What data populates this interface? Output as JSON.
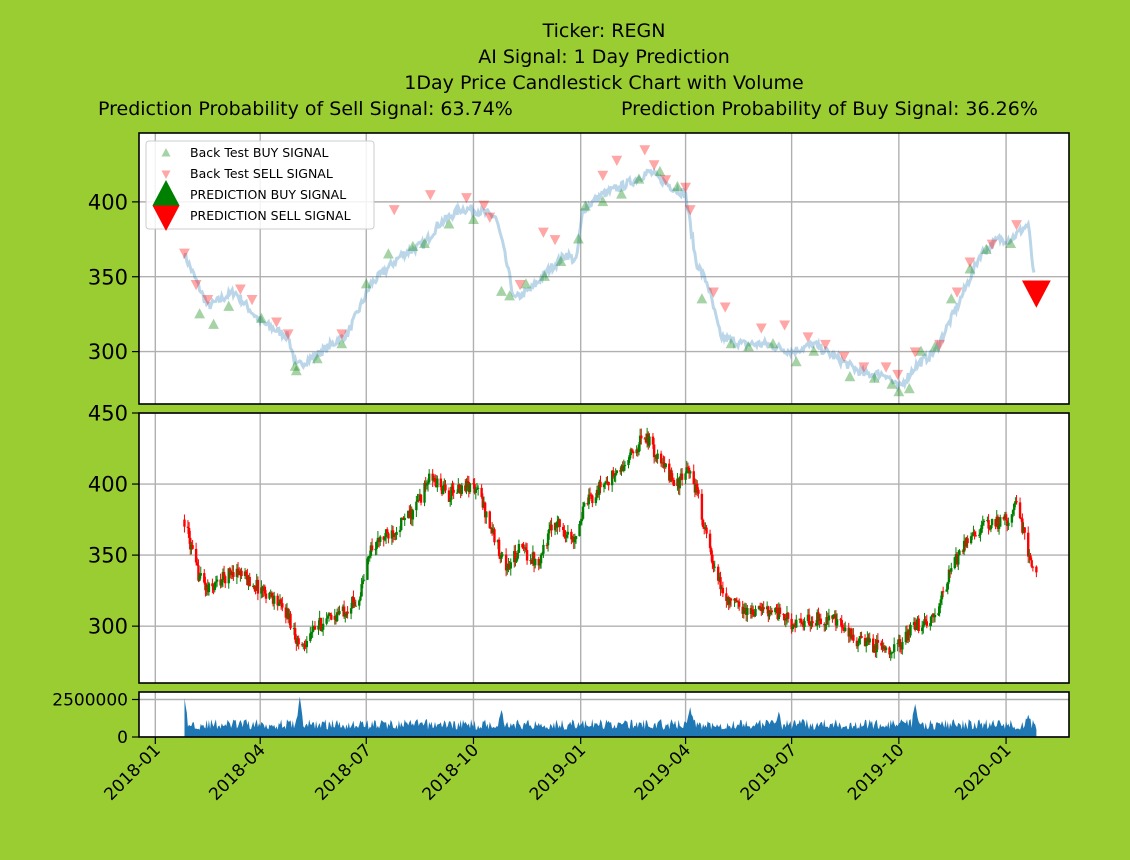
{
  "header": {
    "ticker": "Ticker: REGN",
    "signal": "AI Signal: 1 Day Prediction",
    "chart_desc": "1Day Price Candlestick Chart with Volume",
    "sell_prob": "Prediction Probability of Sell Signal: 63.74%",
    "buy_prob": "Prediction Probability of Buy Signal: 36.26%"
  },
  "colors": {
    "background": "#9acd32",
    "buy": "#008000",
    "sell": "#ff0000",
    "price_line": "#1f77b4",
    "volume": "#1f77b4",
    "grid": "#b0b0b0"
  },
  "legend": {
    "items": [
      {
        "label": "Back Test BUY SIGNAL",
        "symbol": "up",
        "color": "#008000",
        "alpha": 0.35
      },
      {
        "label": "Back Test SELL SIGNAL",
        "symbol": "down",
        "color": "#ff0000",
        "alpha": 0.35
      },
      {
        "label": "PREDICTION BUY SIGNAL",
        "symbol": "up",
        "color": "#008000",
        "alpha": 1
      },
      {
        "label": "PREDICTION SELL SIGNAL",
        "symbol": "down",
        "color": "#ff0000",
        "alpha": 1
      }
    ]
  },
  "chart_data": [
    {
      "type": "line",
      "name": "signals",
      "x_dates": [
        "2018-01-26",
        "2018-02-15",
        "2018-03-10",
        "2018-04-01",
        "2018-04-25",
        "2018-05-02",
        "2018-05-20",
        "2018-06-15",
        "2018-07-05",
        "2018-08-01",
        "2018-08-20",
        "2018-09-01",
        "2018-09-20",
        "2018-10-01",
        "2018-10-20",
        "2018-10-25",
        "2018-11-05",
        "2018-11-20",
        "2018-12-05",
        "2018-12-20",
        "2018-12-28",
        "2019-01-03",
        "2019-01-20",
        "2019-02-10",
        "2019-03-01",
        "2019-03-20",
        "2019-04-01",
        "2019-04-10",
        "2019-04-20",
        "2019-05-01",
        "2019-05-20",
        "2019-06-10",
        "2019-07-01",
        "2019-07-20",
        "2019-08-10",
        "2019-09-01",
        "2019-09-20",
        "2019-10-01",
        "2019-10-15",
        "2019-11-01",
        "2019-11-20",
        "2019-12-10",
        "2019-12-25",
        "2020-01-05",
        "2020-01-20",
        "2020-01-25"
      ],
      "values": [
        365,
        330,
        340,
        320,
        310,
        290,
        298,
        312,
        345,
        365,
        372,
        385,
        395,
        395,
        390,
        375,
        335,
        342,
        355,
        365,
        360,
        395,
        405,
        412,
        420,
        410,
        405,
        360,
        345,
        310,
        305,
        305,
        300,
        305,
        295,
        285,
        285,
        275,
        290,
        300,
        330,
        365,
        375,
        375,
        385,
        350
      ],
      "buy_dates": [
        "2018-02-08",
        "2018-02-20",
        "2018-03-05",
        "2018-04-02",
        "2018-05-01",
        "2018-05-02",
        "2018-05-20",
        "2018-06-10",
        "2018-07-01",
        "2018-07-20",
        "2018-08-10",
        "2018-08-20",
        "2018-09-10",
        "2018-10-01",
        "2018-10-25",
        "2018-11-01",
        "2018-11-15",
        "2018-12-01",
        "2018-12-15",
        "2018-12-30",
        "2019-01-05",
        "2019-01-20",
        "2019-02-05",
        "2019-02-20",
        "2019-03-10",
        "2019-03-25",
        "2019-04-15",
        "2019-05-10",
        "2019-05-25",
        "2019-06-15",
        "2019-07-05",
        "2019-07-20",
        "2019-08-20",
        "2019-09-10",
        "2019-09-25",
        "2019-10-01",
        "2019-10-10",
        "2019-10-20",
        "2019-11-01",
        "2019-11-15",
        "2019-12-01",
        "2019-12-15",
        "2020-01-05"
      ],
      "buy_values": [
        325,
        318,
        330,
        322,
        290,
        287,
        295,
        305,
        345,
        365,
        370,
        372,
        385,
        388,
        340,
        337,
        345,
        350,
        360,
        375,
        397,
        400,
        405,
        415,
        420,
        410,
        335,
        305,
        303,
        305,
        293,
        300,
        283,
        282,
        278,
        273,
        275,
        300,
        303,
        335,
        355,
        368,
        372
      ],
      "sell_dates": [
        "2018-01-26",
        "2018-02-05",
        "2018-02-15",
        "2018-03-15",
        "2018-03-25",
        "2018-04-15",
        "2018-04-25",
        "2018-06-10",
        "2018-07-25",
        "2018-08-25",
        "2018-09-25",
        "2018-10-10",
        "2018-10-15",
        "2018-11-10",
        "2018-11-30",
        "2018-12-10",
        "2019-01-20",
        "2019-02-01",
        "2019-02-25",
        "2019-03-05",
        "2019-03-15",
        "2019-04-01",
        "2019-04-05",
        "2019-04-25",
        "2019-05-05",
        "2019-06-05",
        "2019-06-25",
        "2019-07-15",
        "2019-07-30",
        "2019-08-15",
        "2019-09-01",
        "2019-09-20",
        "2019-09-30",
        "2019-10-15",
        "2019-11-05",
        "2019-11-20",
        "2019-12-01",
        "2019-12-20",
        "2020-01-10"
      ],
      "sell_values": [
        366,
        345,
        335,
        342,
        335,
        320,
        312,
        312,
        395,
        405,
        403,
        398,
        390,
        345,
        380,
        375,
        418,
        428,
        435,
        425,
        415,
        410,
        395,
        340,
        330,
        316,
        318,
        310,
        305,
        297,
        290,
        290,
        285,
        300,
        305,
        340,
        360,
        372,
        385
      ],
      "prediction": {
        "type": "sell",
        "date": "2020-01-27",
        "value": 340
      },
      "ylim": [
        265,
        446
      ],
      "yticks": [
        300,
        350,
        400
      ]
    },
    {
      "type": "candlestick",
      "name": "price",
      "anchor_dates": [
        "2018-01-26",
        "2018-02-05",
        "2018-02-15",
        "2018-03-10",
        "2018-03-25",
        "2018-04-10",
        "2018-04-25",
        "2018-05-05",
        "2018-05-20",
        "2018-06-10",
        "2018-06-25",
        "2018-07-05",
        "2018-07-25",
        "2018-08-10",
        "2018-08-25",
        "2018-09-10",
        "2018-09-25",
        "2018-10-05",
        "2018-10-20",
        "2018-10-30",
        "2018-11-10",
        "2018-11-25",
        "2018-12-10",
        "2018-12-25",
        "2019-01-05",
        "2019-01-20",
        "2019-02-05",
        "2019-02-25",
        "2019-03-10",
        "2019-03-25",
        "2019-04-05",
        "2019-04-12",
        "2019-04-25",
        "2019-05-05",
        "2019-05-25",
        "2019-06-15",
        "2019-07-05",
        "2019-07-20",
        "2019-08-05",
        "2019-08-25",
        "2019-09-15",
        "2019-09-30",
        "2019-10-15",
        "2019-11-01",
        "2019-11-15",
        "2019-12-01",
        "2019-12-20",
        "2020-01-03",
        "2020-01-10",
        "2020-01-20",
        "2020-01-27"
      ],
      "anchor_values": [
        375,
        340,
        325,
        340,
        330,
        322,
        308,
        285,
        300,
        310,
        320,
        355,
        368,
        380,
        405,
        392,
        400,
        395,
        360,
        340,
        355,
        345,
        375,
        360,
        385,
        400,
        410,
        435,
        415,
        400,
        410,
        390,
        340,
        320,
        310,
        312,
        300,
        305,
        305,
        290,
        285,
        285,
        300,
        305,
        340,
        365,
        372,
        375,
        390,
        350,
        335
      ],
      "ylim": [
        260,
        450
      ],
      "yticks": [
        300,
        350,
        400,
        450
      ]
    },
    {
      "type": "area",
      "name": "volume",
      "base": 800000,
      "spikes": [
        {
          "date": "2018-01-26",
          "value": 2600000
        },
        {
          "date": "2018-05-05",
          "value": 2700000
        },
        {
          "date": "2018-10-25",
          "value": 1800000
        },
        {
          "date": "2019-04-05",
          "value": 2000000
        },
        {
          "date": "2019-06-20",
          "value": 1700000
        },
        {
          "date": "2019-10-15",
          "value": 2200000
        },
        {
          "date": "2020-01-20",
          "value": 1500000
        }
      ],
      "ylim": [
        0,
        3000000
      ],
      "yticks": [
        0,
        2500000
      ]
    }
  ],
  "x_axis": {
    "xlim": [
      "2017-12-18",
      "2020-02-24"
    ],
    "ticks": [
      "2018-01",
      "2018-04",
      "2018-07",
      "2018-10",
      "2019-01",
      "2019-04",
      "2019-07",
      "2019-10",
      "2020-01"
    ]
  }
}
